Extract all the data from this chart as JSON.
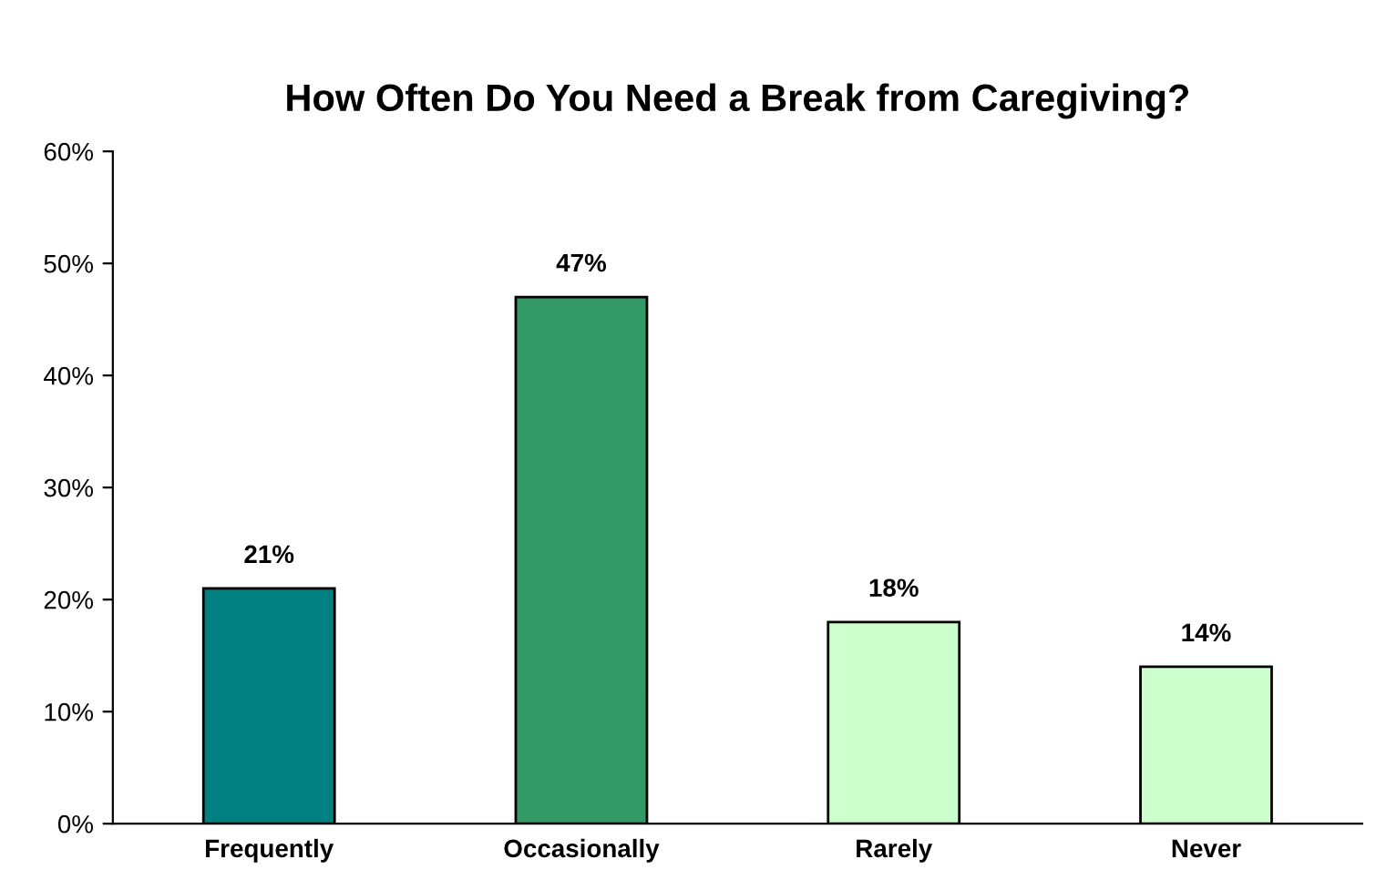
{
  "chart_data": {
    "type": "bar",
    "title": "How Often Do You Need a Break from Caregiving?",
    "categories": [
      "Frequently",
      "Occasionally",
      "Rarely",
      "Never"
    ],
    "values": [
      21,
      47,
      18,
      14
    ],
    "colors": [
      "#008080",
      "#339966",
      "#ccffcc",
      "#ccffcc"
    ],
    "value_labels": [
      "21%",
      "47%",
      "18%",
      "14%"
    ],
    "ylim": [
      0,
      60
    ],
    "yticks": [
      {
        "value": 0,
        "label": "0%"
      },
      {
        "value": 10,
        "label": "10%"
      },
      {
        "value": 20,
        "label": "20%"
      },
      {
        "value": 30,
        "label": "30%"
      },
      {
        "value": 40,
        "label": "40%"
      },
      {
        "value": 50,
        "label": "50%"
      },
      {
        "value": 60,
        "label": "60%"
      }
    ],
    "grid": false
  }
}
